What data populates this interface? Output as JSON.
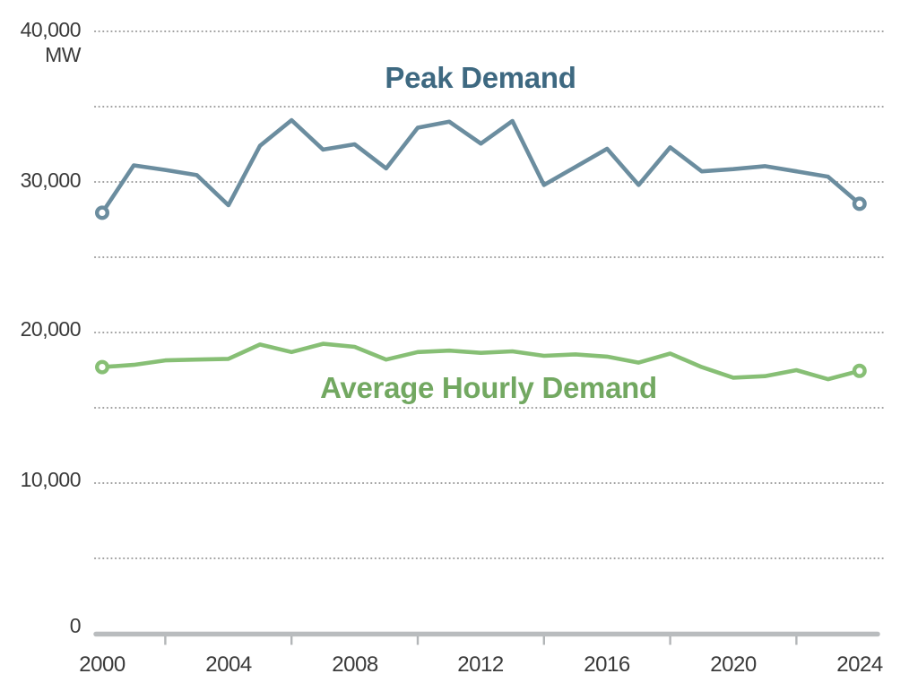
{
  "chart_data": {
    "type": "line",
    "title": "",
    "ylabel": "MW",
    "ylim": [
      0,
      40000
    ],
    "grid_interval": 5000,
    "grid_style": "dotted-horizontal",
    "legend_position": "inline-series-labels",
    "x": [
      2000,
      2001,
      2002,
      2003,
      2004,
      2005,
      2006,
      2007,
      2008,
      2009,
      2010,
      2011,
      2012,
      2013,
      2014,
      2015,
      2016,
      2017,
      2018,
      2019,
      2020,
      2021,
      2022,
      2023,
      2024
    ],
    "x_tick_labels": [
      "2000",
      "2004",
      "2008",
      "2012",
      "2016",
      "2020",
      "2024"
    ],
    "x_minor_ticks": [
      2002,
      2006,
      2010,
      2014,
      2018,
      2022
    ],
    "y_tick_labels": [
      {
        "value": 40000,
        "label": "40,000"
      },
      {
        "value": 30000,
        "label": "30,000"
      },
      {
        "value": 20000,
        "label": "20,000"
      },
      {
        "value": 10000,
        "label": "10,000"
      },
      {
        "value": 0,
        "label": "0"
      }
    ],
    "series": [
      {
        "name": "Peak Demand",
        "color": "#6b8d9f",
        "label_color": "#3e6981",
        "endpoint_markers": true,
        "values": [
          27950,
          31100,
          30800,
          30450,
          28450,
          32400,
          34100,
          32150,
          32500,
          30900,
          33600,
          34000,
          32550,
          34050,
          29800,
          31000,
          32200,
          29800,
          32300,
          30700,
          30850,
          31050,
          30700,
          30350,
          28550
        ]
      },
      {
        "name": "Average Hourly Demand",
        "color": "#87bf75",
        "label_color": "#72a861",
        "endpoint_markers": true,
        "values": [
          17700,
          17850,
          18150,
          18200,
          18250,
          19200,
          18700,
          19250,
          19050,
          18200,
          18700,
          18800,
          18650,
          18750,
          18450,
          18550,
          18400,
          18000,
          18600,
          17700,
          17000,
          17100,
          17500,
          16900,
          17450
        ]
      }
    ]
  },
  "colors": {
    "background": "#ffffff",
    "axis_text": "#3a3a3a",
    "grid_dots": "#9b9b9b",
    "baseline": "#b9bcbe",
    "tick": "#b3b6b8"
  }
}
